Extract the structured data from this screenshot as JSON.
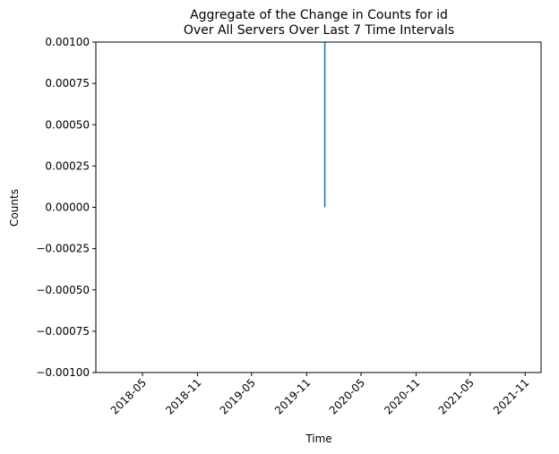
{
  "chart_data": {
    "type": "line",
    "title_line1": "Aggregate of the Change in Counts for id",
    "title_line2": "Over All Servers Over Last 7 Time Intervals",
    "xlabel": "Time",
    "ylabel": "Counts",
    "x_axis_type": "date",
    "x_ticks": [
      "2018-05",
      "2018-11",
      "2019-05",
      "2019-11",
      "2020-05",
      "2020-11",
      "2021-05",
      "2021-11"
    ],
    "y_ticks": [
      "0.00100",
      "0.00075",
      "0.00050",
      "0.00025",
      "0.00000",
      "−0.00025",
      "−0.00050",
      "−0.00075",
      "−0.00100"
    ],
    "ylim": [
      -0.001,
      0.001
    ],
    "grid": false,
    "series": [
      {
        "color": "#1f77b4",
        "points": [
          {
            "x": "2020-01-01",
            "y": 0.0
          },
          {
            "x": "2020-01-01",
            "y": 0.001
          }
        ]
      }
    ]
  }
}
